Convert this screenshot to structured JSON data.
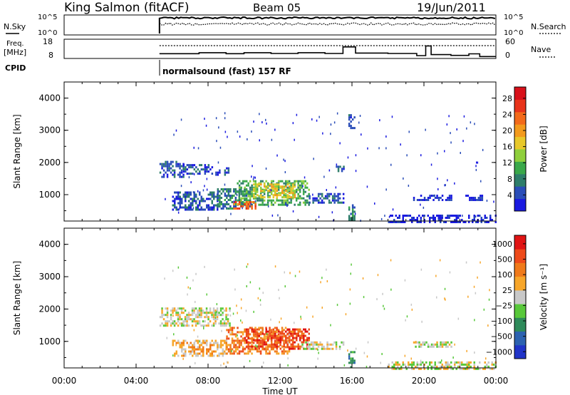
{
  "header": {
    "station": "King Salmon (fitACF)",
    "beam": "Beam 05",
    "date": "19/Jun/2011"
  },
  "side_labels": {
    "nsky": "N.Sky",
    "nsearch": "N.Search",
    "freq_line1": "Freq.",
    "freq_line2": "[MHz]",
    "nave": "Nave",
    "cpid": "CPID"
  },
  "noise_axis": {
    "left_top": "10^5",
    "left_bottom": "10^0",
    "right_top": "10^5",
    "right_bottom": "10^0"
  },
  "freq_axis": {
    "left_top": "18",
    "left_bottom": "8",
    "right_top": "60",
    "right_bottom": "0"
  },
  "cpid_text": "normalsound (fast) 157 RF",
  "chart_data": [
    {
      "type": "heatmap",
      "title": "",
      "ylabel": "Slant Range [km]",
      "xlabel": "Time UT",
      "x_ticks": [
        "00:00",
        "04:00",
        "08:00",
        "12:00",
        "16:00",
        "20:00",
        "00:00"
      ],
      "y_ticks": [
        "1000",
        "2000",
        "3000",
        "4000"
      ],
      "ylim": [
        180,
        4500
      ],
      "xlim_hours": [
        0,
        24
      ],
      "colorbar": {
        "label": "Power [dB]",
        "ticks": [
          "4",
          "8",
          "12",
          "16",
          "20",
          "24",
          "28"
        ],
        "colors": [
          "#1a1ae0",
          "#2a4db8",
          "#2e7d6a",
          "#3aa84a",
          "#8fcf3c",
          "#e8c82a",
          "#f39a1c",
          "#f36a1a",
          "#e8331a",
          "#d8101a"
        ]
      },
      "regions": [
        {
          "t0": 5.3,
          "t1": 6.6,
          "r0": 1550,
          "r1": 2050,
          "level": 1
        },
        {
          "t0": 6.6,
          "t1": 8.2,
          "r0": 1650,
          "r1": 1950,
          "level": 1
        },
        {
          "t0": 8.4,
          "t1": 9.1,
          "r0": 1600,
          "r1": 1850,
          "level": 1
        },
        {
          "t0": 6.0,
          "t1": 8.5,
          "r0": 550,
          "r1": 1100,
          "level": 1
        },
        {
          "t0": 8.5,
          "t1": 10.2,
          "r0": 600,
          "r1": 1200,
          "level": 2
        },
        {
          "t0": 9.6,
          "t1": 13.6,
          "r0": 700,
          "r1": 1450,
          "level": 3
        },
        {
          "t0": 10.5,
          "t1": 12.8,
          "r0": 900,
          "r1": 1350,
          "level": 5
        },
        {
          "t0": 9.4,
          "t1": 10.6,
          "r0": 600,
          "r1": 800,
          "level": 7
        },
        {
          "t0": 13.5,
          "t1": 15.5,
          "r0": 750,
          "r1": 1050,
          "level": 1
        },
        {
          "t0": 15.1,
          "t1": 15.6,
          "r0": 1750,
          "r1": 1900,
          "level": 1
        },
        {
          "t0": 19.4,
          "t1": 21.5,
          "r0": 850,
          "r1": 1000,
          "level": 0
        },
        {
          "t0": 22.3,
          "t1": 23.3,
          "r0": 850,
          "r1": 1000,
          "level": 0
        },
        {
          "t0": 18.0,
          "t1": 24.0,
          "r0": 180,
          "r1": 380,
          "level": 0
        },
        {
          "t0": 15.8,
          "t1": 16.1,
          "r0": 180,
          "r1": 700,
          "level": 2
        },
        {
          "t0": 15.8,
          "t1": 16.1,
          "r0": 3100,
          "r1": 3500,
          "level": 1
        }
      ]
    },
    {
      "type": "heatmap",
      "title": "",
      "ylabel": "Slant Range [km]",
      "xlabel": "Time UT",
      "x_ticks": [
        "00:00",
        "04:00",
        "08:00",
        "12:00",
        "16:00",
        "20:00",
        "00:00"
      ],
      "y_ticks": [
        "1000",
        "2000",
        "3000",
        "4000"
      ],
      "ylim": [
        180,
        4500
      ],
      "xlim_hours": [
        0,
        24
      ],
      "colorbar": {
        "label": "Velocity [m s⁻¹]",
        "ticks": [
          "1000",
          "500",
          "100",
          "25",
          "−25",
          "−100",
          "−500",
          "−1000"
        ],
        "colors": [
          "#2034c8",
          "#2c62b0",
          "#2e8a5a",
          "#58c83a",
          "#c8c8c8",
          "#f7a62a",
          "#f07a1a",
          "#ee4a1a",
          "#e01414"
        ]
      },
      "regions": [
        {
          "t0": 5.3,
          "t1": 9.2,
          "r0": 1500,
          "r1": 2050,
          "level": 4
        },
        {
          "t0": 6.0,
          "t1": 9.0,
          "r0": 550,
          "r1": 1050,
          "level": 5
        },
        {
          "t0": 9.0,
          "t1": 12.5,
          "r0": 600,
          "r1": 1450,
          "level": 6
        },
        {
          "t0": 10.0,
          "t1": 13.6,
          "r0": 750,
          "r1": 1400,
          "level": 7
        },
        {
          "t0": 13.2,
          "t1": 15.5,
          "r0": 800,
          "r1": 1000,
          "level": 4
        },
        {
          "t0": 15.8,
          "t1": 16.1,
          "r0": 180,
          "r1": 700,
          "level": 2
        },
        {
          "t0": 18.0,
          "t1": 24.0,
          "r0": 180,
          "r1": 380,
          "level": 4
        },
        {
          "t0": 19.4,
          "t1": 21.5,
          "r0": 850,
          "r1": 1000,
          "level": 4
        }
      ]
    }
  ],
  "noise_series": {
    "start_hour": 5.3,
    "nsky_level": 0.85,
    "nsearch_level": 0.55
  },
  "freq_series": {
    "steps": [
      {
        "h": 5.3,
        "f": 10.5
      },
      {
        "h": 7.5,
        "f": 11.0
      },
      {
        "h": 9.0,
        "f": 10.5
      },
      {
        "h": 10.0,
        "f": 11.0
      },
      {
        "h": 11.5,
        "f": 10.6
      },
      {
        "h": 13.0,
        "f": 11.0
      },
      {
        "h": 14.5,
        "f": 10.6
      },
      {
        "h": 15.5,
        "f": 14.0
      },
      {
        "h": 16.2,
        "f": 10.8
      },
      {
        "h": 18.0,
        "f": 10.6
      },
      {
        "h": 19.6,
        "f": 9.5
      },
      {
        "h": 20.1,
        "f": 14.5
      },
      {
        "h": 20.4,
        "f": 10.0
      },
      {
        "h": 21.5,
        "f": 9.6
      },
      {
        "h": 22.5,
        "f": 10.4
      },
      {
        "h": 23.1,
        "f": 9.0
      },
      {
        "h": 24.0,
        "f": 9.0
      }
    ],
    "nave_level": 40
  }
}
